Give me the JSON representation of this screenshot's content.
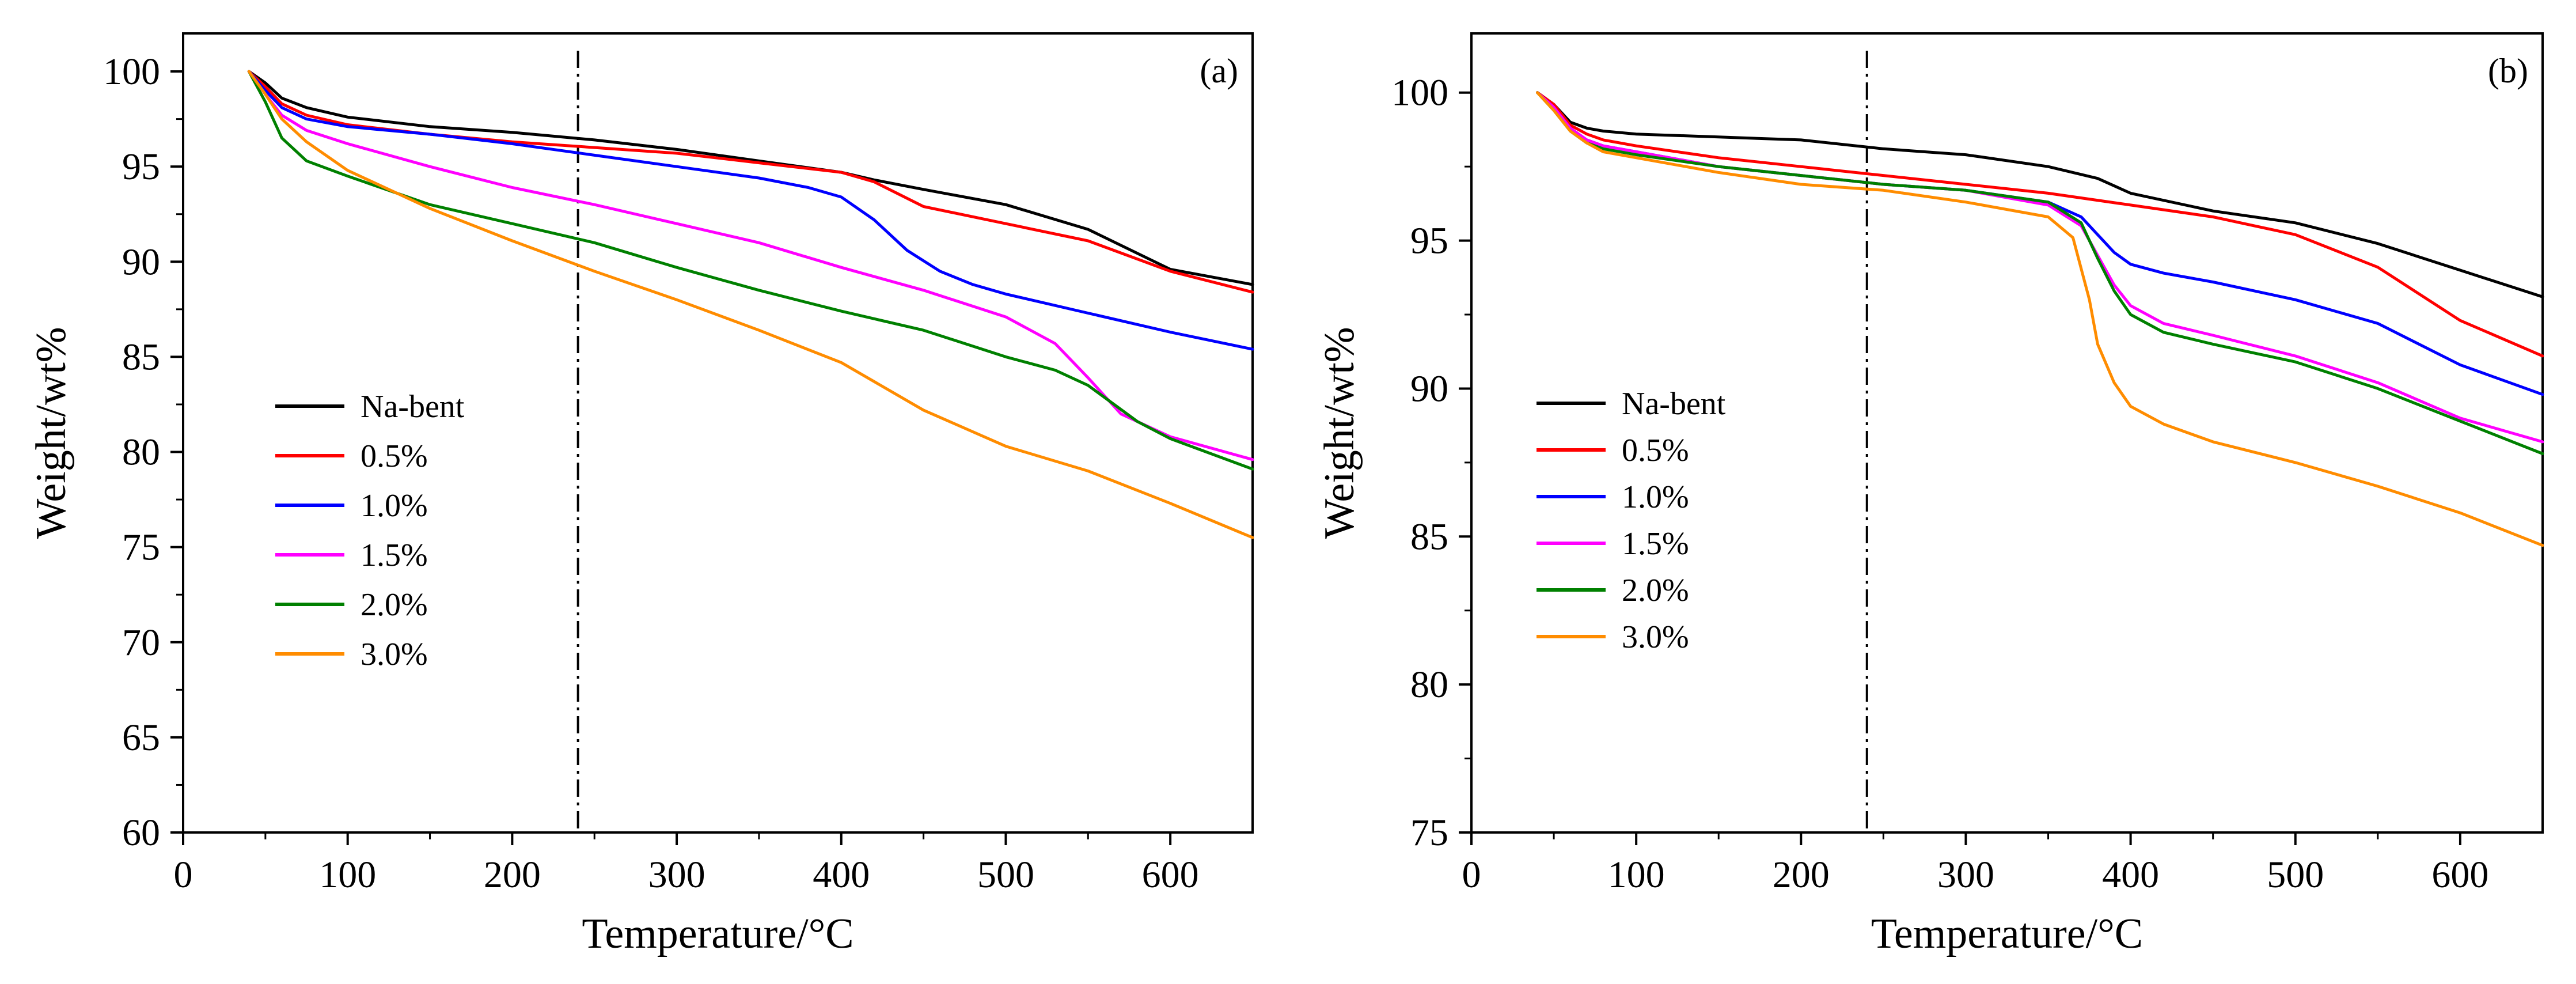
{
  "chart_data": [
    {
      "type": "line",
      "panel_label": "(a)",
      "xlabel": "Temperature/°C",
      "ylabel": "Weight/wt%",
      "xlim": [
        0,
        650
      ],
      "ylim": [
        60,
        102
      ],
      "xticks": [
        0,
        100,
        200,
        300,
        400,
        500,
        600
      ],
      "yticks": [
        60,
        65,
        70,
        75,
        80,
        85,
        90,
        95,
        100
      ],
      "reference_line_x": 240,
      "legend_position": "middle-left",
      "series": [
        {
          "name": "Na-bent",
          "color": "#000000",
          "x": [
            40,
            50,
            60,
            75,
            100,
            150,
            200,
            250,
            300,
            350,
            400,
            420,
            450,
            500,
            550,
            600,
            650
          ],
          "y": [
            100,
            99.4,
            98.6,
            98.1,
            97.6,
            97.1,
            96.8,
            96.4,
            95.9,
            95.3,
            94.7,
            94.3,
            93.8,
            93.0,
            91.7,
            89.6,
            88.8
          ]
        },
        {
          "name": "0.5%",
          "color": "#ff0000",
          "x": [
            40,
            50,
            60,
            75,
            100,
            150,
            200,
            250,
            300,
            350,
            400,
            420,
            450,
            500,
            550,
            600,
            650
          ],
          "y": [
            100,
            99.2,
            98.3,
            97.7,
            97.2,
            96.7,
            96.3,
            96.0,
            95.7,
            95.2,
            94.7,
            94.2,
            92.9,
            92.0,
            91.1,
            89.5,
            88.4
          ]
        },
        {
          "name": "1.0%",
          "color": "#0000ff",
          "x": [
            40,
            50,
            60,
            75,
            100,
            150,
            200,
            250,
            300,
            350,
            380,
            400,
            420,
            440,
            460,
            480,
            500,
            550,
            600,
            650
          ],
          "y": [
            100,
            99.0,
            98.1,
            97.5,
            97.1,
            96.7,
            96.2,
            95.6,
            95.0,
            94.4,
            93.9,
            93.4,
            92.2,
            90.6,
            89.5,
            88.8,
            88.3,
            87.3,
            86.3,
            85.4
          ]
        },
        {
          "name": "1.5%",
          "color": "#ff00ff",
          "x": [
            40,
            50,
            60,
            75,
            100,
            150,
            200,
            250,
            300,
            350,
            400,
            450,
            500,
            530,
            550,
            570,
            600,
            650
          ],
          "y": [
            100,
            98.8,
            97.7,
            96.9,
            96.2,
            95.0,
            93.9,
            93.0,
            92.0,
            91.0,
            89.7,
            88.5,
            87.1,
            85.7,
            83.9,
            82.0,
            80.8,
            79.6
          ]
        },
        {
          "name": "2.0%",
          "color": "#008000",
          "x": [
            40,
            50,
            60,
            75,
            100,
            150,
            200,
            250,
            300,
            350,
            400,
            450,
            500,
            530,
            550,
            580,
            600,
            650
          ],
          "y": [
            100,
            98.4,
            96.5,
            95.3,
            94.5,
            93.0,
            92.0,
            91.0,
            89.7,
            88.5,
            87.4,
            86.4,
            85.0,
            84.3,
            83.5,
            81.6,
            80.7,
            79.1
          ]
        },
        {
          "name": "3.0%",
          "color": "#ff8c00",
          "x": [
            40,
            50,
            60,
            75,
            100,
            150,
            200,
            250,
            300,
            350,
            400,
            450,
            500,
            550,
            600,
            650
          ],
          "y": [
            100,
            98.8,
            97.5,
            96.3,
            94.8,
            92.8,
            91.1,
            89.5,
            88.0,
            86.4,
            84.7,
            82.2,
            80.3,
            79.0,
            77.3,
            75.5
          ]
        }
      ]
    },
    {
      "type": "line",
      "panel_label": "(b)",
      "xlabel": "Temperature/°C",
      "ylabel": "Weight/wt%",
      "xlim": [
        0,
        650
      ],
      "ylim": [
        75,
        102
      ],
      "xticks": [
        0,
        100,
        200,
        300,
        400,
        500,
        600
      ],
      "yticks": [
        75,
        80,
        85,
        90,
        95,
        100
      ],
      "reference_line_x": 240,
      "legend_position": "middle-left",
      "series": [
        {
          "name": "Na-bent",
          "color": "#000000",
          "x": [
            40,
            50,
            60,
            70,
            80,
            100,
            150,
            200,
            250,
            300,
            350,
            380,
            400,
            450,
            500,
            550,
            600,
            650
          ],
          "y": [
            100,
            99.6,
            99.0,
            98.8,
            98.7,
            98.6,
            98.5,
            98.4,
            98.1,
            97.9,
            97.5,
            97.1,
            96.6,
            96.0,
            95.6,
            94.9,
            94.0,
            93.1
          ]
        },
        {
          "name": "0.5%",
          "color": "#ff0000",
          "x": [
            40,
            50,
            60,
            70,
            80,
            100,
            150,
            200,
            250,
            300,
            350,
            400,
            450,
            500,
            550,
            600,
            650
          ],
          "y": [
            100,
            99.6,
            98.9,
            98.6,
            98.4,
            98.2,
            97.8,
            97.5,
            97.2,
            96.9,
            96.6,
            96.2,
            95.8,
            95.2,
            94.1,
            92.3,
            91.1
          ]
        },
        {
          "name": "1.0%",
          "color": "#0000ff",
          "x": [
            40,
            50,
            60,
            70,
            80,
            100,
            150,
            200,
            250,
            300,
            350,
            370,
            380,
            390,
            400,
            420,
            450,
            500,
            550,
            600,
            650
          ],
          "y": [
            100,
            99.5,
            98.8,
            98.4,
            98.2,
            98.0,
            97.5,
            97.2,
            96.9,
            96.7,
            96.3,
            95.8,
            95.2,
            94.6,
            94.2,
            93.9,
            93.6,
            93.0,
            92.2,
            90.8,
            89.8
          ]
        },
        {
          "name": "1.5%",
          "color": "#ff00ff",
          "x": [
            40,
            50,
            60,
            70,
            80,
            100,
            150,
            200,
            250,
            300,
            350,
            370,
            380,
            390,
            400,
            420,
            450,
            500,
            550,
            600,
            650
          ],
          "y": [
            100,
            99.5,
            98.8,
            98.4,
            98.2,
            98.0,
            97.5,
            97.2,
            96.9,
            96.7,
            96.2,
            95.5,
            94.5,
            93.5,
            92.8,
            92.2,
            91.8,
            91.1,
            90.2,
            89.0,
            88.2
          ]
        },
        {
          "name": "2.0%",
          "color": "#008000",
          "x": [
            40,
            50,
            60,
            70,
            80,
            100,
            150,
            200,
            250,
            300,
            350,
            370,
            380,
            390,
            400,
            420,
            450,
            500,
            550,
            600,
            650
          ],
          "y": [
            100,
            99.4,
            98.7,
            98.3,
            98.1,
            97.9,
            97.5,
            97.2,
            96.9,
            96.7,
            96.3,
            95.6,
            94.4,
            93.3,
            92.5,
            91.9,
            91.5,
            90.9,
            90.0,
            88.9,
            87.8
          ]
        },
        {
          "name": "3.0%",
          "color": "#ff8c00",
          "x": [
            40,
            50,
            60,
            70,
            80,
            100,
            150,
            200,
            250,
            300,
            350,
            365,
            375,
            380,
            390,
            400,
            420,
            450,
            500,
            550,
            600,
            650
          ],
          "y": [
            100,
            99.4,
            98.7,
            98.3,
            98.0,
            97.8,
            97.3,
            96.9,
            96.7,
            96.3,
            95.8,
            95.1,
            93.0,
            91.5,
            90.2,
            89.4,
            88.8,
            88.2,
            87.5,
            86.7,
            85.8,
            84.7
          ]
        }
      ]
    }
  ]
}
